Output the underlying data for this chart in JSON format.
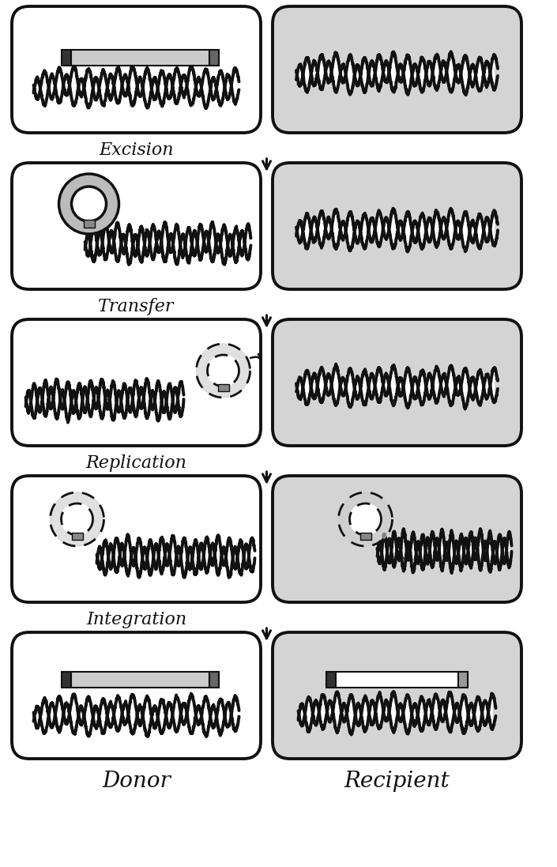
{
  "background_white": "#ffffff",
  "background_gray": "#d4d4d4",
  "border_color": "#111111",
  "dna_color": "#111111",
  "fig_width": 7.05,
  "fig_height": 10.97,
  "labels": [
    "Excision",
    "Transfer",
    "Replication",
    "Integration"
  ],
  "col_labels": [
    "Donor",
    "Recipient"
  ]
}
